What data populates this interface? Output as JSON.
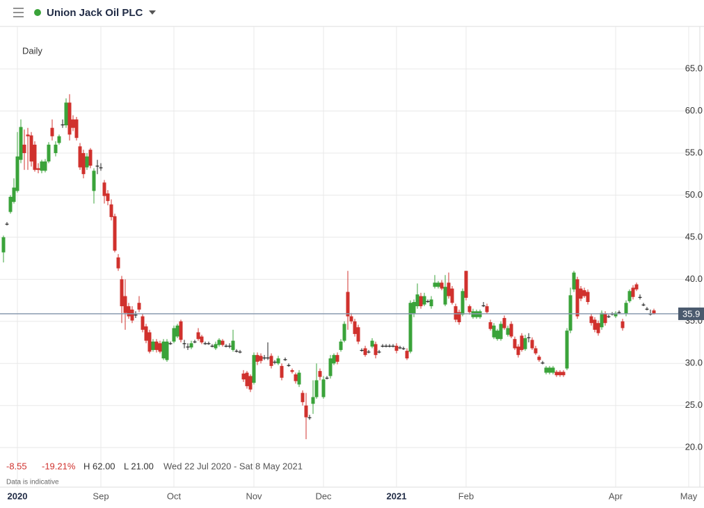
{
  "chart_data": {
    "type": "candlestick",
    "title": "Union Jack Oil PLC",
    "interval": "Daily",
    "status_color": "#3aa33a",
    "up_color": "#3aa33a",
    "down_color": "#d0312d",
    "flat_color": "#222222",
    "grid": true,
    "ylim": [
      15.3,
      70.05
    ],
    "yticks": [
      {
        "value": 65,
        "label": "65.0"
      },
      {
        "value": 60,
        "label": "60.0"
      },
      {
        "value": 55,
        "label": "55.0"
      },
      {
        "value": 50,
        "label": "50.0"
      },
      {
        "value": 45,
        "label": "45.0"
      },
      {
        "value": 40,
        "label": "40.0"
      },
      {
        "value": 35,
        "label": "35.0"
      },
      {
        "value": 30,
        "label": "30.0"
      },
      {
        "value": 25,
        "label": "25.0"
      },
      {
        "value": 20,
        "label": "20.0"
      }
    ],
    "last_price": 35.9,
    "last_price_color": "#8a9bb0",
    "categories": [
      null,
      null,
      null,
      null,
      "2020",
      null,
      null,
      null,
      null,
      null,
      null,
      null,
      null,
      null,
      null,
      null,
      null,
      null,
      null,
      null,
      null,
      null,
      null,
      null,
      null,
      null,
      null,
      null,
      "Sep",
      null,
      null,
      null,
      null,
      null,
      null,
      null,
      null,
      null,
      null,
      null,
      null,
      null,
      null,
      null,
      null,
      null,
      null,
      null,
      null,
      "Oct",
      null,
      null,
      null,
      null,
      null,
      null,
      null,
      null,
      null,
      null,
      null,
      null,
      null,
      null,
      null,
      null,
      null,
      null,
      null,
      null,
      null,
      null,
      "Nov",
      null,
      null,
      null,
      null,
      null,
      null,
      null,
      null,
      null,
      null,
      null,
      null,
      null,
      null,
      null,
      null,
      null,
      null,
      null,
      "Dec",
      null,
      null,
      null,
      null,
      null,
      null,
      null,
      null,
      null,
      null,
      null,
      null,
      null,
      null,
      null,
      null,
      null,
      null,
      null,
      null,
      "2021",
      null,
      null,
      null,
      null,
      null,
      null,
      null,
      null,
      null,
      null,
      null,
      null,
      null,
      null,
      null,
      null,
      null,
      null,
      null,
      "Feb",
      null,
      null,
      null,
      null,
      null,
      null,
      null,
      null,
      null,
      null,
      null,
      null,
      null,
      null,
      null,
      null,
      null,
      null,
      null,
      null,
      null,
      null,
      null,
      null,
      null,
      null,
      null,
      null,
      null,
      null,
      null,
      null,
      null,
      null,
      null,
      null,
      null,
      null,
      null,
      null,
      null,
      null,
      "Apr",
      null,
      null,
      null,
      null,
      null,
      null,
      null,
      null,
      null,
      null,
      null,
      null,
      null,
      null,
      null,
      null,
      null,
      null,
      null,
      null,
      "May"
    ],
    "ohlc": [
      [
        43.2,
        45.2,
        42.0,
        45.0
      ],
      [
        46.6,
        46.8,
        46.4,
        46.6
      ],
      [
        48.0,
        50.0,
        47.8,
        49.8
      ],
      [
        49.2,
        52.0,
        49.0,
        50.9
      ],
      [
        50.5,
        57.5,
        50.3,
        54.6
      ],
      [
        54.2,
        59.0,
        53.8,
        58.1
      ],
      [
        56.0,
        57.8,
        53.0,
        55.0
      ],
      [
        57.2,
        58.0,
        53.0,
        57.0
      ],
      [
        57.1,
        57.5,
        53.4,
        54.0
      ],
      [
        56.0,
        56.4,
        52.8,
        53.0
      ],
      [
        53.2,
        53.8,
        52.6,
        53.0
      ],
      [
        52.9,
        54.2,
        52.6,
        54.0
      ],
      [
        52.9,
        54.3,
        52.7,
        54.0
      ],
      [
        54.0,
        56.3,
        53.8,
        56.0
      ],
      [
        58.0,
        59.0,
        56.5,
        57.0
      ],
      [
        55.0,
        56.4,
        54.6,
        56.0
      ],
      [
        56.2,
        57.2,
        56.0,
        57.0
      ],
      [
        58.4,
        59.0,
        58.0,
        58.4
      ],
      [
        58.3,
        61.5,
        58.0,
        61.0
      ],
      [
        61.0,
        62.0,
        56.5,
        57.2
      ],
      [
        59.0,
        59.5,
        57.6,
        58.0
      ],
      [
        59.0,
        59.3,
        56.5,
        56.8
      ],
      [
        55.8,
        56.2,
        53.0,
        53.3
      ],
      [
        55.0,
        55.4,
        52.0,
        52.5
      ],
      [
        53.3,
        55.0,
        53.0,
        54.6
      ],
      [
        55.4,
        55.6,
        53.2,
        53.5
      ],
      [
        50.5,
        53.2,
        49.0,
        52.9
      ],
      [
        53.5,
        54.2,
        52.5,
        53.5
      ],
      [
        53.3,
        53.8,
        52.9,
        53.3
      ],
      [
        51.5,
        51.8,
        49.0,
        49.9
      ],
      [
        50.2,
        50.6,
        48.8,
        49.3
      ],
      [
        48.9,
        49.5,
        47.0,
        47.4
      ],
      [
        47.5,
        47.8,
        43.2,
        43.4
      ],
      [
        42.6,
        43.0,
        41.0,
        41.3
      ],
      [
        40.0,
        40.4,
        34.8,
        36.8
      ],
      [
        38.0,
        40.0,
        34.0,
        36.0
      ],
      [
        36.8,
        37.2,
        35.3,
        35.6
      ],
      [
        36.4,
        36.8,
        34.8,
        35.1
      ],
      [
        35.8,
        36.2,
        35.4,
        35.8
      ],
      [
        37.2,
        38.0,
        36.1,
        36.4
      ],
      [
        35.6,
        35.9,
        33.7,
        34.0
      ],
      [
        34.4,
        34.7,
        32.4,
        32.7
      ],
      [
        33.7,
        34.0,
        31.2,
        31.4
      ],
      [
        31.6,
        32.9,
        31.4,
        32.6
      ],
      [
        32.6,
        32.9,
        31.3,
        31.6
      ],
      [
        32.4,
        32.7,
        31.2,
        31.4
      ],
      [
        30.6,
        32.9,
        30.4,
        32.6
      ],
      [
        30.4,
        32.9,
        30.2,
        32.6
      ],
      [
        32.4,
        32.6,
        32.2,
        32.4
      ],
      [
        32.6,
        34.5,
        32.4,
        34.2
      ],
      [
        33.2,
        34.7,
        33.0,
        34.5
      ],
      [
        35.0,
        35.2,
        32.5,
        32.8
      ],
      [
        32.4,
        32.8,
        31.8,
        32.4
      ],
      [
        32.0,
        32.4,
        31.6,
        32.0
      ],
      [
        31.9,
        32.7,
        31.7,
        32.4
      ],
      [
        32.6,
        32.8,
        32.4,
        32.6
      ],
      [
        33.7,
        34.2,
        32.7,
        32.9
      ],
      [
        33.2,
        33.4,
        32.3,
        32.5
      ],
      [
        32.4,
        32.6,
        32.2,
        32.4
      ],
      [
        32.4,
        32.6,
        32.2,
        32.4
      ],
      [
        32.1,
        32.3,
        31.9,
        32.1
      ],
      [
        31.8,
        32.6,
        31.6,
        32.3
      ],
      [
        32.2,
        33.0,
        32.0,
        32.8
      ],
      [
        32.7,
        32.9,
        32.0,
        32.2
      ],
      [
        32.1,
        32.3,
        31.9,
        32.1
      ],
      [
        32.1,
        32.4,
        31.8,
        32.1
      ],
      [
        31.6,
        34.0,
        31.4,
        32.7
      ],
      [
        31.5,
        31.7,
        31.3,
        31.5
      ],
      [
        31.4,
        31.6,
        31.2,
        31.4
      ],
      [
        28.8,
        29.2,
        27.8,
        28.1
      ],
      [
        28.9,
        29.1,
        27.0,
        27.3
      ],
      [
        28.5,
        28.7,
        26.6,
        26.9
      ],
      [
        27.7,
        31.3,
        27.5,
        31.0
      ],
      [
        31.0,
        31.3,
        29.8,
        30.2
      ],
      [
        30.9,
        31.2,
        30.0,
        30.3
      ],
      [
        30.7,
        31.0,
        30.4,
        30.7
      ],
      [
        30.7,
        32.5,
        30.4,
        30.7
      ],
      [
        30.9,
        31.2,
        29.4,
        29.7
      ],
      [
        30.2,
        30.4,
        29.9,
        30.2
      ],
      [
        30.0,
        30.9,
        29.8,
        30.6
      ],
      [
        29.7,
        30.0,
        28.0,
        28.3
      ],
      [
        30.5,
        30.7,
        30.3,
        30.5
      ],
      [
        29.8,
        30.0,
        29.6,
        29.8
      ],
      [
        29.2,
        29.4,
        28.8,
        29.0
      ],
      [
        28.7,
        28.9,
        27.6,
        27.9
      ],
      [
        27.5,
        29.2,
        27.2,
        28.9
      ],
      [
        26.5,
        26.8,
        25.0,
        25.4
      ],
      [
        25.0,
        26.5,
        21.0,
        23.6
      ],
      [
        23.6,
        23.9,
        23.3,
        23.6
      ],
      [
        25.2,
        28.0,
        24.0,
        26.0
      ],
      [
        26.0,
        30.0,
        25.8,
        28.0
      ],
      [
        29.1,
        29.4,
        28.0,
        28.4
      ],
      [
        26.0,
        28.5,
        25.8,
        28.1
      ],
      [
        28.3,
        28.5,
        28.1,
        28.3
      ],
      [
        28.5,
        31.0,
        28.2,
        30.6
      ],
      [
        30.0,
        31.2,
        29.8,
        31.0
      ],
      [
        31.0,
        31.3,
        29.9,
        30.2
      ],
      [
        31.6,
        32.9,
        31.4,
        32.6
      ],
      [
        32.7,
        35.0,
        32.5,
        34.7
      ],
      [
        38.5,
        41.0,
        34.0,
        35.6
      ],
      [
        35.6,
        36.0,
        34.7,
        35.0
      ],
      [
        35.0,
        35.3,
        33.2,
        33.5
      ],
      [
        34.3,
        34.6,
        32.3,
        32.6
      ],
      [
        31.6,
        31.8,
        31.4,
        31.6
      ],
      [
        31.8,
        32.1,
        30.8,
        31.0
      ],
      [
        31.4,
        31.6,
        31.2,
        31.4
      ],
      [
        32.0,
        33.0,
        31.8,
        32.7
      ],
      [
        32.3,
        32.6,
        30.6,
        31.0
      ],
      [
        31.4,
        31.6,
        31.2,
        31.4
      ],
      [
        32.1,
        32.3,
        31.9,
        32.1
      ],
      [
        32.1,
        32.3,
        31.9,
        32.1
      ],
      [
        32.1,
        32.3,
        31.9,
        32.1
      ],
      [
        32.1,
        32.3,
        31.9,
        32.1
      ],
      [
        32.1,
        32.4,
        31.2,
        31.5
      ],
      [
        31.9,
        32.1,
        31.7,
        31.9
      ],
      [
        31.8,
        32.0,
        31.6,
        31.8
      ],
      [
        31.5,
        31.8,
        30.4,
        30.6
      ],
      [
        31.4,
        37.5,
        31.2,
        37.2
      ],
      [
        35.9,
        37.6,
        35.5,
        37.3
      ],
      [
        36.8,
        39.5,
        36.5,
        38.2
      ],
      [
        38.0,
        38.4,
        36.5,
        36.8
      ],
      [
        37.0,
        38.4,
        36.8,
        38.0
      ],
      [
        37.4,
        37.6,
        37.2,
        37.4
      ],
      [
        36.8,
        38.0,
        36.5,
        37.6
      ],
      [
        39.1,
        40.5,
        38.9,
        39.6
      ],
      [
        39.1,
        39.8,
        38.9,
        39.6
      ],
      [
        39.6,
        39.9,
        38.7,
        38.9
      ],
      [
        37.0,
        40.5,
        36.8,
        39.1
      ],
      [
        39.6,
        40.8,
        37.7,
        38.0
      ],
      [
        38.9,
        39.2,
        37.0,
        37.2
      ],
      [
        36.8,
        37.1,
        34.9,
        35.2
      ],
      [
        36.1,
        36.4,
        34.6,
        34.9
      ],
      [
        35.8,
        38.9,
        35.6,
        38.6
      ],
      [
        41.0,
        41.0,
        37.5,
        37.8
      ],
      [
        36.8,
        37.0,
        35.8,
        36.1
      ],
      [
        35.5,
        36.5,
        35.3,
        36.2
      ],
      [
        35.5,
        36.4,
        35.3,
        36.2
      ],
      [
        35.5,
        36.4,
        35.3,
        36.2
      ],
      [
        36.9,
        37.3,
        36.7,
        36.9
      ],
      [
        36.8,
        37.1,
        35.9,
        36.1
      ],
      [
        34.9,
        35.2,
        33.9,
        34.1
      ],
      [
        33.1,
        34.8,
        32.9,
        34.5
      ],
      [
        32.9,
        34.1,
        32.7,
        33.9
      ],
      [
        32.9,
        35.0,
        32.7,
        34.7
      ],
      [
        35.4,
        35.7,
        34.0,
        34.2
      ],
      [
        33.4,
        34.5,
        33.2,
        34.2
      ],
      [
        34.7,
        35.0,
        33.0,
        33.2
      ],
      [
        32.9,
        33.2,
        31.6,
        31.8
      ],
      [
        32.0,
        32.3,
        30.7,
        31.0
      ],
      [
        33.3,
        33.6,
        31.4,
        31.6
      ],
      [
        31.7,
        33.4,
        31.5,
        33.0
      ],
      [
        33.1,
        33.6,
        32.5,
        33.1
      ],
      [
        32.8,
        33.1,
        31.6,
        31.8
      ],
      [
        31.8,
        32.1,
        31.0,
        31.2
      ],
      [
        30.8,
        31.0,
        30.2,
        30.4
      ],
      [
        30.1,
        30.3,
        29.9,
        30.1
      ],
      [
        28.9,
        29.7,
        28.7,
        29.5
      ],
      [
        28.9,
        29.7,
        28.7,
        29.5
      ],
      [
        28.9,
        29.7,
        28.7,
        29.5
      ],
      [
        29.0,
        29.2,
        28.4,
        28.6
      ],
      [
        29.0,
        29.2,
        28.4,
        28.6
      ],
      [
        29.0,
        29.2,
        28.4,
        28.6
      ],
      [
        29.4,
        34.2,
        29.2,
        33.9
      ],
      [
        33.9,
        39.0,
        33.6,
        38.1
      ],
      [
        38.8,
        41.0,
        38.5,
        40.8
      ],
      [
        40.0,
        40.3,
        35.3,
        35.6
      ],
      [
        38.9,
        39.2,
        37.4,
        37.7
      ],
      [
        38.7,
        39.0,
        37.8,
        38.0
      ],
      [
        38.5,
        38.8,
        37.0,
        37.3
      ],
      [
        35.6,
        35.9,
        34.5,
        34.8
      ],
      [
        35.2,
        35.5,
        33.7,
        34.0
      ],
      [
        34.8,
        35.1,
        33.3,
        33.6
      ],
      [
        34.3,
        36.3,
        34.0,
        36.0
      ],
      [
        35.9,
        36.2,
        34.5,
        34.8
      ],
      [
        35.6,
        35.8,
        35.4,
        35.6
      ],
      [
        35.9,
        36.1,
        35.7,
        35.9
      ],
      [
        35.6,
        36.2,
        35.4,
        36.0
      ],
      [
        36.1,
        36.3,
        35.9,
        36.1
      ],
      [
        35.0,
        35.3,
        33.9,
        34.2
      ],
      [
        35.9,
        37.5,
        35.6,
        37.2
      ],
      [
        37.4,
        38.8,
        37.2,
        38.6
      ],
      [
        39.0,
        39.3,
        37.6,
        37.9
      ],
      [
        39.4,
        39.6,
        38.6,
        38.8
      ],
      [
        37.9,
        38.2,
        37.6,
        37.9
      ],
      [
        37.0,
        37.2,
        36.8,
        37.0
      ],
      [
        36.5,
        36.7,
        36.3,
        36.5
      ],
      [
        35.9,
        36.4,
        35.7,
        35.9
      ],
      [
        36.3,
        36.5,
        35.8,
        35.9
      ],
      null,
      null,
      null,
      null,
      null,
      null,
      null,
      null,
      null,
      null
    ],
    "stats": {
      "change": "-8.55",
      "change_pct": "-19.21%",
      "high": "H 62.00",
      "low": "L 21.00",
      "range": "Wed 22 Jul 2020 - Sat 8 May 2021"
    },
    "change_color": "#d0312d",
    "note": "Data is indicative"
  }
}
